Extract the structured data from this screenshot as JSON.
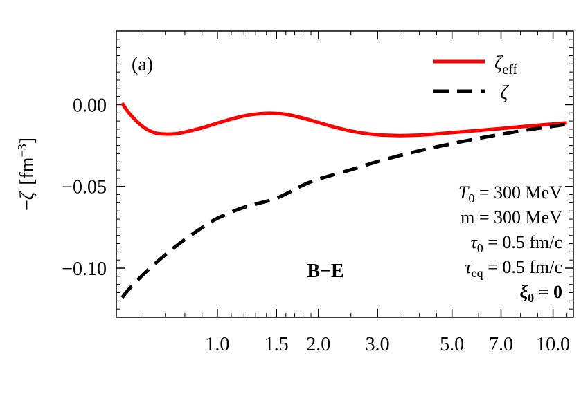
{
  "chart_data": {
    "type": "line",
    "panel_label": "(a)",
    "ylabel": {
      "prefix": "−",
      "symbol": "ζ",
      "unit_open": "[fm",
      "unit_exp": "−3",
      "unit_close": "]"
    },
    "x_scale": "log",
    "xlim": [
      0.5,
      11.5
    ],
    "ylim": [
      -0.13,
      0.045
    ],
    "x_ticks": [
      1.0,
      1.5,
      2.0,
      3.0,
      5.0,
      7.0,
      10.0
    ],
    "x_tick_labels": [
      "1.0",
      "1.5",
      "2.0",
      "3.0",
      "5.0",
      "7.0",
      "10.0"
    ],
    "y_ticks": [
      0.0,
      -0.05,
      -0.1
    ],
    "y_tick_labels": [
      "0.00",
      "−0.05",
      "−0.10"
    ],
    "grid": false,
    "legend_position": "top-right",
    "series": [
      {
        "name": "ζeff",
        "legend_main": "ζ",
        "legend_sub": "eff",
        "color": "#ff0000",
        "style": "solid",
        "x": [
          0.52,
          0.55,
          0.6,
          0.65,
          0.7,
          0.75,
          0.8,
          0.9,
          1.0,
          1.1,
          1.2,
          1.3,
          1.4,
          1.5,
          1.6,
          1.8,
          2.0,
          2.3,
          2.6,
          3.0,
          3.5,
          4.0,
          4.5,
          5.0,
          6.0,
          7.0,
          8.0,
          9.0,
          10.0,
          11.0
        ],
        "y": [
          0.001,
          -0.006,
          -0.0135,
          -0.0172,
          -0.018,
          -0.0178,
          -0.0168,
          -0.0142,
          -0.0113,
          -0.0088,
          -0.0069,
          -0.0058,
          -0.0053,
          -0.0054,
          -0.0059,
          -0.0082,
          -0.0109,
          -0.0144,
          -0.0168,
          -0.0184,
          -0.0189,
          -0.0186,
          -0.0179,
          -0.0171,
          -0.0158,
          -0.0146,
          -0.0135,
          -0.0126,
          -0.0118,
          -0.0111
        ]
      },
      {
        "name": "ζ",
        "legend_main": "ζ",
        "legend_sub": "",
        "color": "#000000",
        "style": "dashed",
        "x": [
          0.52,
          0.55,
          0.6,
          0.65,
          0.7,
          0.75,
          0.8,
          0.9,
          1.0,
          1.2,
          1.5,
          1.8,
          2.0,
          2.5,
          3.0,
          3.5,
          4.0,
          5.0,
          6.0,
          7.0,
          8.0,
          9.0,
          10.0,
          11.0
        ],
        "y": [
          -0.118,
          -0.112,
          -0.104,
          -0.0975,
          -0.0918,
          -0.0868,
          -0.0825,
          -0.0752,
          -0.0695,
          -0.0628,
          -0.0572,
          -0.0492,
          -0.0456,
          -0.0398,
          -0.0348,
          -0.0311,
          -0.0282,
          -0.0238,
          -0.0206,
          -0.0181,
          -0.0161,
          -0.0145,
          -0.0132,
          -0.012
        ]
      }
    ],
    "annotation_be": "B−E",
    "params": [
      {
        "sym": "T",
        "sub": "0",
        "rest": " = 300 MeV",
        "sym_italic": true,
        "bold": false
      },
      {
        "sym": "m",
        "sub": "",
        "rest": " = 300 MeV",
        "sym_italic": false,
        "bold": false
      },
      {
        "sym": "τ",
        "sub": "0",
        "rest": " = 0.5 fm/c",
        "sym_italic": true,
        "bold": false
      },
      {
        "sym": "τ",
        "sub": "eq",
        "rest": " = 0.5 fm/c",
        "sym_italic": true,
        "bold": false
      },
      {
        "sym": "ξ",
        "sub": "0",
        "rest": " = 0",
        "sym_italic": true,
        "bold": true
      }
    ],
    "colors": {
      "axes": "#000000",
      "annotation": "#ff0000"
    }
  }
}
